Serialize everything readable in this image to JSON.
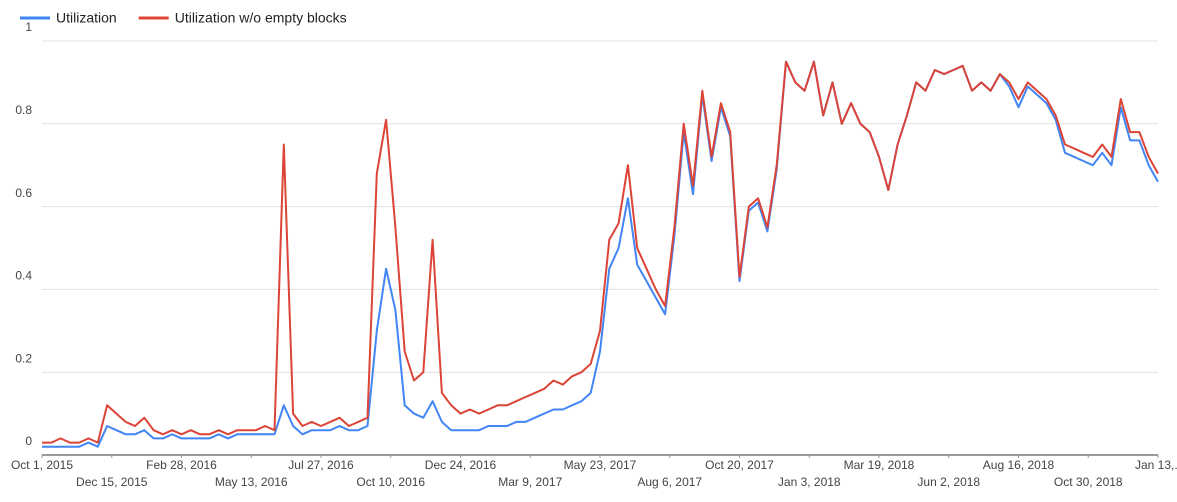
{
  "chart_data": {
    "type": "line",
    "legend": "top",
    "grid": true,
    "ylim": [
      0,
      1
    ],
    "yticks": [
      0,
      0.2,
      0.4,
      0.6,
      0.8,
      1
    ],
    "xlim": [
      "2015-10-01",
      "2019-01-13"
    ],
    "xticks": [
      {
        "value": "2015-10-01",
        "label": "Oct 1, 2015"
      },
      {
        "value": "2015-12-15",
        "label": "Dec 15, 2015"
      },
      {
        "value": "2016-02-28",
        "label": "Feb 28, 2016"
      },
      {
        "value": "2016-05-13",
        "label": "May 13, 2016"
      },
      {
        "value": "2016-07-27",
        "label": "Jul 27, 2016"
      },
      {
        "value": "2016-10-10",
        "label": "Oct 10, 2016"
      },
      {
        "value": "2016-12-24",
        "label": "Dec 24, 2016"
      },
      {
        "value": "2017-03-09",
        "label": "Mar 9, 2017"
      },
      {
        "value": "2017-05-23",
        "label": "May 23, 2017"
      },
      {
        "value": "2017-08-06",
        "label": "Aug 6, 2017"
      },
      {
        "value": "2017-10-20",
        "label": "Oct 20, 2017"
      },
      {
        "value": "2018-01-03",
        "label": "Jan 3, 2018"
      },
      {
        "value": "2018-03-19",
        "label": "Mar 19, 2018"
      },
      {
        "value": "2018-06-02",
        "label": "Jun 2, 2018"
      },
      {
        "value": "2018-08-16",
        "label": "Aug 16, 2018"
      },
      {
        "value": "2018-10-30",
        "label": "Oct 30, 2018"
      },
      {
        "value": "2019-01-13",
        "label": "Jan 13,.."
      }
    ],
    "x": [
      "2015-10-01",
      "2015-10-11",
      "2015-10-21",
      "2015-10-31",
      "2015-11-10",
      "2015-11-20",
      "2015-11-30",
      "2015-12-10",
      "2015-12-20",
      "2015-12-30",
      "2016-01-09",
      "2016-01-19",
      "2016-01-29",
      "2016-02-08",
      "2016-02-18",
      "2016-02-28",
      "2016-03-09",
      "2016-03-19",
      "2016-03-29",
      "2016-04-08",
      "2016-04-18",
      "2016-04-28",
      "2016-05-08",
      "2016-05-18",
      "2016-05-28",
      "2016-06-07",
      "2016-06-17",
      "2016-06-27",
      "2016-07-07",
      "2016-07-17",
      "2016-07-27",
      "2016-08-06",
      "2016-08-16",
      "2016-08-26",
      "2016-09-05",
      "2016-09-15",
      "2016-09-25",
      "2016-10-05",
      "2016-10-15",
      "2016-10-25",
      "2016-11-04",
      "2016-11-14",
      "2016-11-24",
      "2016-12-04",
      "2016-12-14",
      "2016-12-24",
      "2017-01-03",
      "2017-01-13",
      "2017-01-23",
      "2017-02-02",
      "2017-02-12",
      "2017-02-22",
      "2017-03-04",
      "2017-03-14",
      "2017-03-24",
      "2017-04-03",
      "2017-04-13",
      "2017-04-23",
      "2017-05-03",
      "2017-05-13",
      "2017-05-23",
      "2017-06-02",
      "2017-06-12",
      "2017-06-22",
      "2017-07-02",
      "2017-07-12",
      "2017-07-22",
      "2017-08-01",
      "2017-08-11",
      "2017-08-21",
      "2017-08-31",
      "2017-09-10",
      "2017-09-20",
      "2017-09-30",
      "2017-10-10",
      "2017-10-20",
      "2017-10-30",
      "2017-11-09",
      "2017-11-19",
      "2017-11-29",
      "2017-12-09",
      "2017-12-19",
      "2017-12-29",
      "2018-01-08",
      "2018-01-18",
      "2018-01-28",
      "2018-02-07",
      "2018-02-17",
      "2018-02-27",
      "2018-03-09",
      "2018-03-19",
      "2018-03-29",
      "2018-04-08",
      "2018-04-18",
      "2018-04-28",
      "2018-05-08",
      "2018-05-18",
      "2018-05-28",
      "2018-06-07",
      "2018-06-17",
      "2018-06-27",
      "2018-07-07",
      "2018-07-17",
      "2018-07-27",
      "2018-08-06",
      "2018-08-16",
      "2018-08-26",
      "2018-09-05",
      "2018-09-15",
      "2018-09-25",
      "2018-10-05",
      "2018-10-15",
      "2018-10-25",
      "2018-11-04",
      "2018-11-14",
      "2018-11-24",
      "2018-12-04",
      "2018-12-14",
      "2018-12-24",
      "2019-01-03",
      "2019-01-13"
    ],
    "series": [
      {
        "name": "Utilization",
        "color": "#4285f4",
        "values": [
          0.02,
          0.02,
          0.02,
          0.02,
          0.02,
          0.03,
          0.02,
          0.07,
          0.06,
          0.05,
          0.05,
          0.06,
          0.04,
          0.04,
          0.05,
          0.04,
          0.04,
          0.04,
          0.04,
          0.05,
          0.04,
          0.05,
          0.05,
          0.05,
          0.05,
          0.05,
          0.12,
          0.07,
          0.05,
          0.06,
          0.06,
          0.06,
          0.07,
          0.06,
          0.06,
          0.07,
          0.3,
          0.45,
          0.35,
          0.12,
          0.1,
          0.09,
          0.13,
          0.08,
          0.06,
          0.06,
          0.06,
          0.06,
          0.07,
          0.07,
          0.07,
          0.08,
          0.08,
          0.09,
          0.1,
          0.11,
          0.11,
          0.12,
          0.13,
          0.15,
          0.25,
          0.45,
          0.5,
          0.62,
          0.46,
          0.42,
          0.38,
          0.34,
          0.53,
          0.78,
          0.63,
          0.87,
          0.71,
          0.84,
          0.77,
          0.42,
          0.59,
          0.61,
          0.54,
          0.69,
          0.95,
          0.9,
          0.88,
          0.95,
          0.82,
          0.9,
          0.8,
          0.85,
          0.8,
          0.78,
          0.72,
          0.64,
          0.75,
          0.82,
          0.9,
          0.88,
          0.93,
          0.92,
          0.93,
          0.94,
          0.88,
          0.9,
          0.88,
          0.92,
          0.89,
          0.84,
          0.89,
          0.87,
          0.85,
          0.81,
          0.73,
          0.72,
          0.71,
          0.7,
          0.73,
          0.7,
          0.84,
          0.76,
          0.76,
          0.7,
          0.66
        ]
      },
      {
        "name": "Utilization w/o empty blocks",
        "color": "#db4437",
        "values": [
          0.03,
          0.03,
          0.04,
          0.03,
          0.03,
          0.04,
          0.03,
          0.12,
          0.1,
          0.08,
          0.07,
          0.09,
          0.06,
          0.05,
          0.06,
          0.05,
          0.06,
          0.05,
          0.05,
          0.06,
          0.05,
          0.06,
          0.06,
          0.06,
          0.07,
          0.06,
          0.75,
          0.1,
          0.07,
          0.08,
          0.07,
          0.08,
          0.09,
          0.07,
          0.08,
          0.09,
          0.68,
          0.81,
          0.55,
          0.25,
          0.18,
          0.2,
          0.52,
          0.15,
          0.12,
          0.1,
          0.11,
          0.1,
          0.11,
          0.12,
          0.12,
          0.13,
          0.14,
          0.15,
          0.16,
          0.18,
          0.17,
          0.19,
          0.2,
          0.22,
          0.3,
          0.52,
          0.56,
          0.7,
          0.5,
          0.45,
          0.4,
          0.36,
          0.55,
          0.8,
          0.65,
          0.88,
          0.72,
          0.85,
          0.78,
          0.43,
          0.6,
          0.62,
          0.55,
          0.7,
          0.95,
          0.9,
          0.88,
          0.95,
          0.82,
          0.9,
          0.8,
          0.85,
          0.8,
          0.78,
          0.72,
          0.64,
          0.75,
          0.82,
          0.9,
          0.88,
          0.93,
          0.92,
          0.93,
          0.94,
          0.88,
          0.9,
          0.88,
          0.92,
          0.9,
          0.86,
          0.9,
          0.88,
          0.86,
          0.82,
          0.75,
          0.74,
          0.73,
          0.72,
          0.75,
          0.72,
          0.86,
          0.78,
          0.78,
          0.72,
          0.68
        ]
      }
    ]
  }
}
